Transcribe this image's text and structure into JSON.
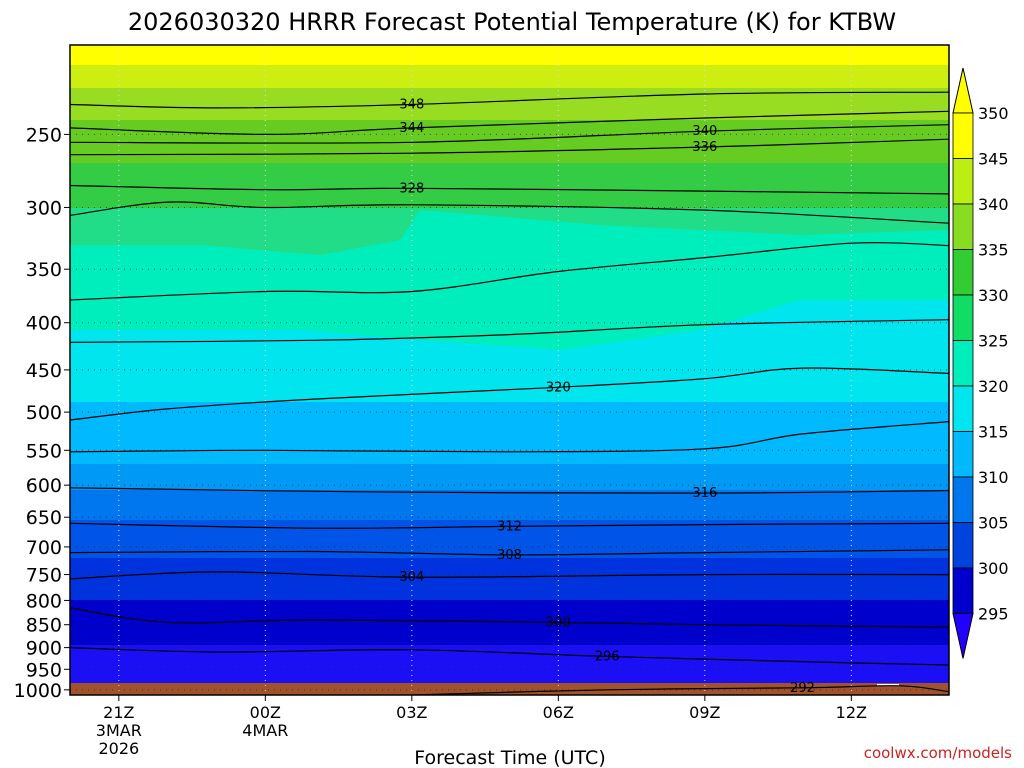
{
  "chart_data": {
    "type": "heatmap",
    "title": "2026030320 HRRR Forecast Potential Temperature (K) for KTBW",
    "xlabel": "Forecast Time (UTC)",
    "ylabel": "",
    "credit": "coolwx.com/models",
    "x_ticks": [
      {
        "hour": 0,
        "lines": [
          "21Z",
          "3MAR",
          "2026"
        ]
      },
      {
        "hour": 3,
        "lines": [
          "00Z",
          "4MAR"
        ]
      },
      {
        "hour": 6,
        "lines": [
          "03Z"
        ]
      },
      {
        "hour": 9,
        "lines": [
          "06Z"
        ]
      },
      {
        "hour": 12,
        "lines": [
          "09Z"
        ]
      },
      {
        "hour": 15,
        "lines": [
          "12Z"
        ]
      }
    ],
    "xlim": [
      -1,
      17
    ],
    "y_ticks": [
      250,
      300,
      350,
      400,
      450,
      500,
      550,
      600,
      650,
      700,
      750,
      800,
      850,
      900,
      950,
      1000
    ],
    "ylim": [
      1013,
      200
    ],
    "yscale": "log",
    "grid": true,
    "colorbar": {
      "labels": [
        "350",
        "345",
        "340",
        "335",
        "330",
        "325",
        "320",
        "315",
        "310",
        "305",
        "300",
        "295"
      ],
      "colors": [
        "#ffff00",
        "#bbee11",
        "#88dd22",
        "#33cc33",
        "#11dd66",
        "#00eebb",
        "#00e5ee",
        "#00b9ff",
        "#0077ee",
        "#0044dd",
        "#0000cc",
        "#2200ff"
      ]
    },
    "contours": [
      {
        "label": "348",
        "points": [
          [
            -1,
            232
          ],
          [
            2,
            234
          ],
          [
            6,
            232
          ],
          [
            12,
            226
          ],
          [
            17,
            225
          ]
        ]
      },
      {
        "label": "344",
        "points": [
          [
            -1,
            246
          ],
          [
            3,
            250
          ],
          [
            6,
            246
          ],
          [
            12,
            240
          ],
          [
            17,
            236
          ]
        ]
      },
      {
        "label": "340",
        "points": [
          [
            -1,
            255
          ],
          [
            6,
            255
          ],
          [
            12,
            248
          ],
          [
            17,
            244
          ]
        ]
      },
      {
        "label": "336",
        "points": [
          [
            -1,
            263
          ],
          [
            6,
            262
          ],
          [
            12,
            258
          ],
          [
            17,
            253
          ]
        ]
      },
      {
        "label": "328",
        "points": [
          [
            -1,
            284
          ],
          [
            3,
            287
          ],
          [
            6,
            286
          ],
          [
            12,
            288
          ],
          [
            17,
            290
          ]
        ]
      },
      {
        "label": "",
        "points": [
          [
            -1,
            306
          ],
          [
            1,
            296
          ],
          [
            3,
            300
          ],
          [
            6,
            298
          ],
          [
            12,
            302
          ],
          [
            17,
            312
          ]
        ]
      },
      {
        "label": "",
        "points": [
          [
            -1,
            378
          ],
          [
            3,
            370
          ],
          [
            6,
            370
          ],
          [
            9,
            352
          ],
          [
            12,
            340
          ],
          [
            15,
            328
          ],
          [
            17,
            330
          ]
        ]
      },
      {
        "label": "",
        "points": [
          [
            -1,
            420
          ],
          [
            4,
            418
          ],
          [
            8,
            412
          ],
          [
            12,
            402
          ],
          [
            17,
            397
          ]
        ]
      },
      {
        "label": "320",
        "points": [
          [
            -1,
            510
          ],
          [
            1,
            496
          ],
          [
            4,
            484
          ],
          [
            9,
            470
          ],
          [
            12,
            460
          ],
          [
            14,
            448
          ],
          [
            17,
            454
          ]
        ]
      },
      {
        "label": "",
        "points": [
          [
            -1,
            552
          ],
          [
            3,
            550
          ],
          [
            8,
            552
          ],
          [
            12,
            548
          ],
          [
            14,
            528
          ],
          [
            17,
            512
          ]
        ]
      },
      {
        "label": "316",
        "points": [
          [
            -1,
            604
          ],
          [
            5,
            610
          ],
          [
            12,
            612
          ],
          [
            17,
            608
          ]
        ]
      },
      {
        "label": "312",
        "points": [
          [
            -1,
            660
          ],
          [
            4,
            668
          ],
          [
            8,
            665
          ],
          [
            12,
            662
          ],
          [
            17,
            660
          ]
        ]
      },
      {
        "label": "308",
        "points": [
          [
            -1,
            710
          ],
          [
            4,
            708
          ],
          [
            8,
            714
          ],
          [
            12,
            710
          ],
          [
            17,
            705
          ]
        ]
      },
      {
        "label": "304",
        "points": [
          [
            -1,
            758
          ],
          [
            2,
            745
          ],
          [
            6,
            755
          ],
          [
            12,
            750
          ],
          [
            17,
            750
          ]
        ]
      },
      {
        "label": "300",
        "points": [
          [
            -1,
            815
          ],
          [
            1,
            845
          ],
          [
            4,
            840
          ],
          [
            9,
            845
          ],
          [
            12,
            850
          ],
          [
            17,
            855
          ]
        ]
      },
      {
        "label": "296",
        "points": [
          [
            -1,
            900
          ],
          [
            2,
            910
          ],
          [
            6,
            905
          ],
          [
            10,
            920
          ],
          [
            15,
            935
          ],
          [
            17,
            940
          ]
        ]
      },
      {
        "label": "292",
        "points": [
          [
            6,
            1013
          ],
          [
            10,
            1000
          ],
          [
            14,
            995
          ],
          [
            16,
            990
          ],
          [
            17,
            1005
          ]
        ]
      }
    ]
  }
}
